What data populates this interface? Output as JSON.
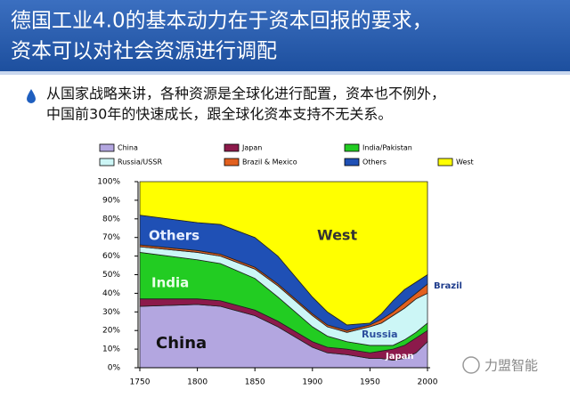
{
  "slide": {
    "title_lines": [
      "德国工业4.0的基本动力在于资本回报的要求，",
      "资本可以对社会资源进行调配"
    ],
    "bullet_lines": [
      "从国家战略来讲，各种资源是全球化进行配置，资本也不例外，",
      "中国前30年的快速成长，跟全球化资本支持不无关系。"
    ]
  },
  "watermark": "力盟智能",
  "chart_data": {
    "type": "stacked_area",
    "x": [
      1750,
      1800,
      1820,
      1850,
      1870,
      1900,
      1913,
      1930,
      1950,
      1960,
      1970,
      1980,
      1990,
      2000
    ],
    "series": [
      {
        "name": "China",
        "color": "#b3a6e0",
        "values": [
          33,
          34,
          33,
          28,
          22,
          11,
          8,
          7,
          5,
          5,
          4,
          5,
          8,
          14
        ]
      },
      {
        "name": "Japan",
        "color": "#8c1a4b",
        "values": [
          4,
          3,
          3,
          3,
          3,
          3,
          3,
          3,
          3,
          4,
          6,
          7,
          8,
          6
        ]
      },
      {
        "name": "India/Pakistan",
        "color": "#22cc22",
        "values": [
          25,
          21,
          20,
          17,
          13,
          8,
          6,
          4,
          4,
          3,
          2,
          3,
          3,
          4
        ]
      },
      {
        "name": "Russia/USSR",
        "color": "#ccf6f6",
        "values": [
          3,
          4,
          4,
          5,
          6,
          6,
          5,
          5,
          10,
          12,
          16,
          17,
          18,
          16
        ]
      },
      {
        "name": "Brazil & Mexico",
        "color": "#e2601f",
        "values": [
          1,
          1,
          1,
          1,
          1,
          1,
          1,
          1,
          1,
          2,
          2,
          3,
          3,
          5
        ]
      },
      {
        "name": "Others",
        "color": "#1f50b5",
        "values": [
          16,
          15,
          16,
          16,
          15,
          9,
          7,
          3,
          1,
          3,
          6,
          7,
          6,
          5
        ]
      },
      {
        "name": "West",
        "color": "#ffff00",
        "values": [
          18,
          22,
          23,
          30,
          40,
          62,
          70,
          77,
          76,
          71,
          64,
          58,
          54,
          50
        ]
      }
    ],
    "annotations": [
      "China",
      "Japan",
      "India",
      "Russia",
      "Brazil",
      "Others",
      "West"
    ],
    "xlim": [
      1750,
      2000
    ],
    "xticks": [
      1750,
      1800,
      1850,
      1900,
      1950,
      2000
    ],
    "ylim": [
      0,
      100
    ],
    "yticks": [
      {
        "value": 0,
        "label": "0%"
      },
      {
        "value": 10,
        "label": "10%"
      },
      {
        "value": 20,
        "label": "20%"
      },
      {
        "value": 30,
        "label": "30%"
      },
      {
        "value": 40,
        "label": "40%"
      },
      {
        "value": 50,
        "label": "50%"
      },
      {
        "value": 60,
        "label": "60%"
      },
      {
        "value": 70,
        "label": "70%"
      },
      {
        "value": 80,
        "label": "80%"
      },
      {
        "value": 90,
        "label": "90%"
      },
      {
        "value": 100,
        "label": "100%"
      }
    ]
  }
}
